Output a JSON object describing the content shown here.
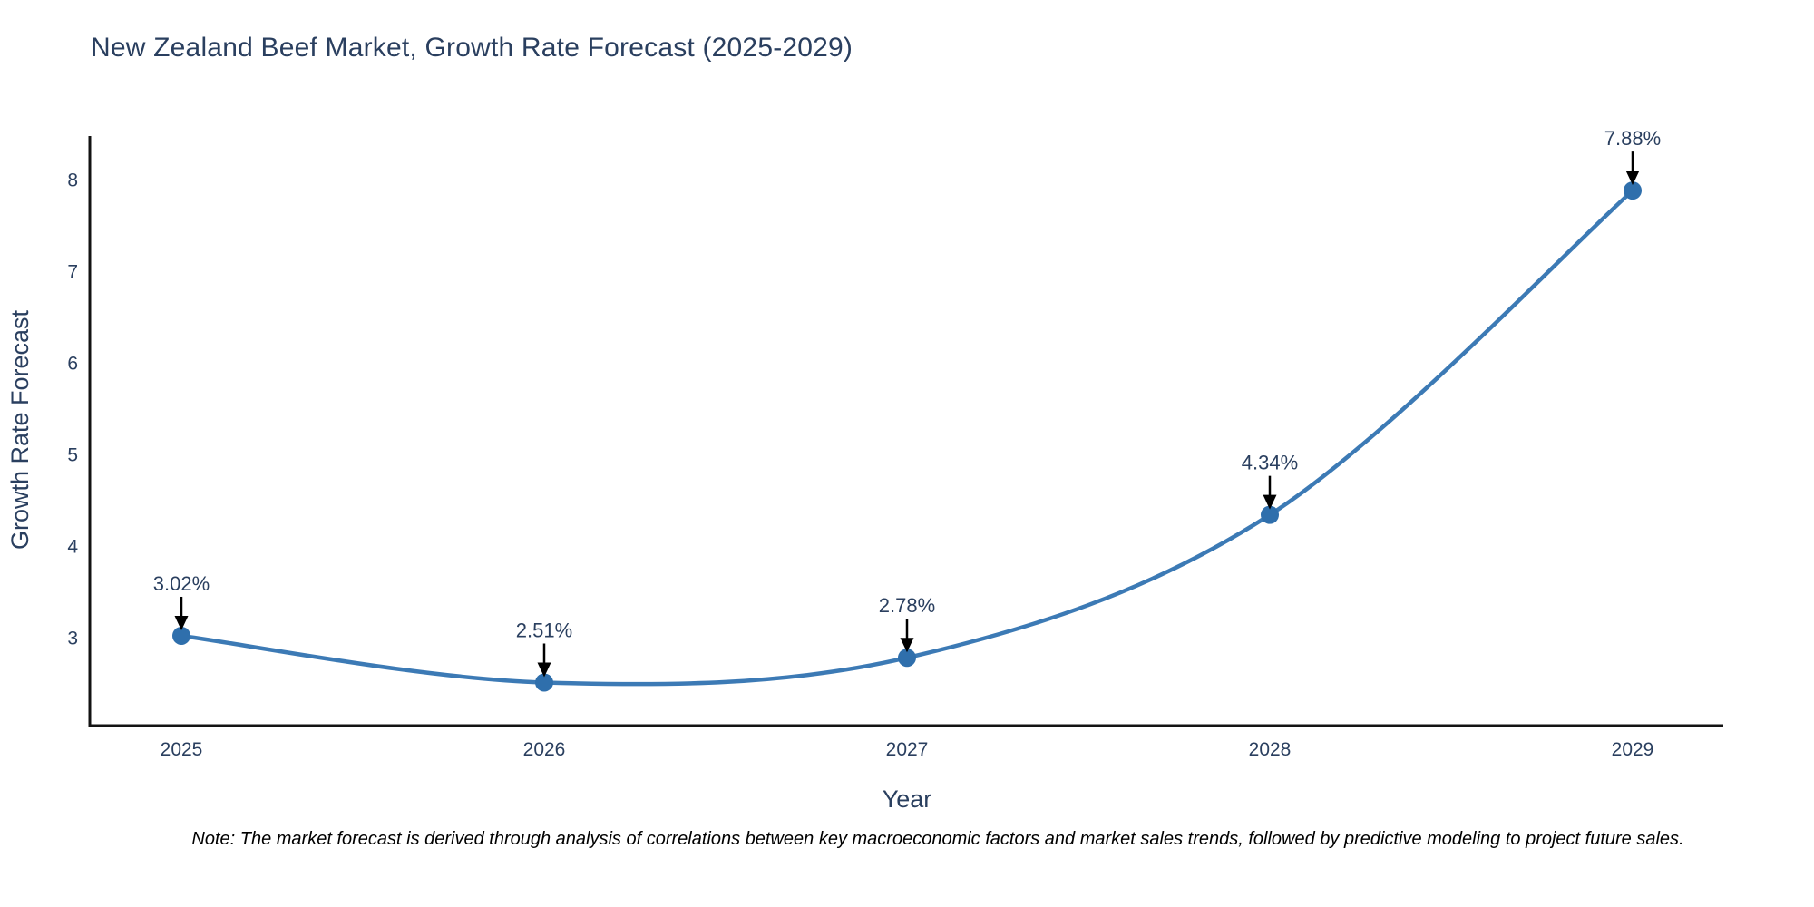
{
  "title": "New Zealand Beef Market, Growth Rate Forecast (2025-2029)",
  "note": "Note: The market forecast is derived through analysis of correlations between key macroeconomic factors and market sales trends, followed by predictive modeling to project future sales.",
  "chart_data": {
    "type": "line",
    "title": "New Zealand Beef Market, Growth Rate Forecast (2025-2029)",
    "xlabel": "Year",
    "ylabel": "Growth Rate Forecast",
    "x": [
      2025,
      2026,
      2027,
      2028,
      2029
    ],
    "series": [
      {
        "name": "Growth Rate Forecast",
        "values": [
          3.02,
          2.51,
          2.78,
          4.34,
          7.88
        ],
        "point_labels": [
          "3.02%",
          "2.51%",
          "2.78%",
          "4.34%",
          "7.88%"
        ]
      }
    ],
    "yticks": [
      3,
      4,
      5,
      6,
      7,
      8
    ],
    "ylim": [
      2.04,
      8.45
    ],
    "grid": false,
    "legend": "none",
    "line_shape": "spline",
    "markers": true,
    "annotations_style": "value label with black down-arrow to each point",
    "colors": {
      "line": "#3c7ab5",
      "marker": "#2f6fac",
      "text": "#2a3f5f",
      "axis": "#131313",
      "arrow": "#000000",
      "note_text": "#000000"
    }
  }
}
